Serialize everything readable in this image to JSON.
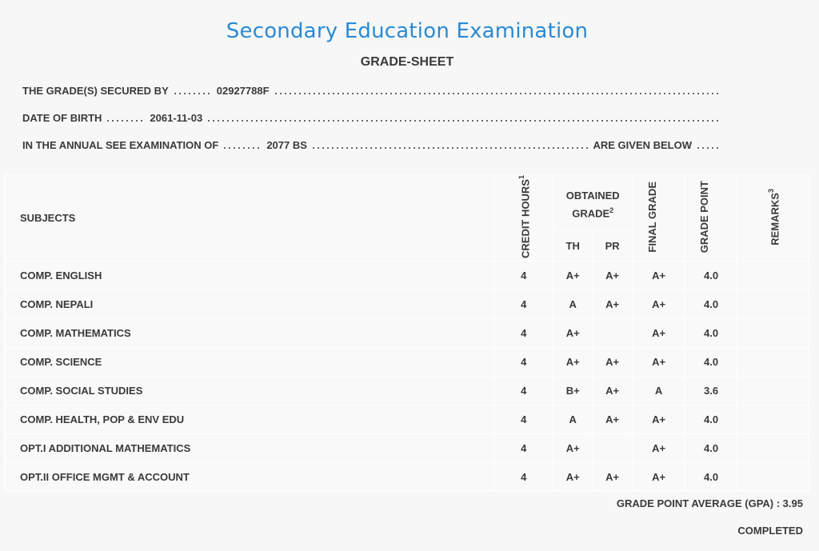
{
  "title": "Secondary Education Examination",
  "subtitle": "GRADE-SHEET",
  "info": [
    {
      "label": "THE GRADE(S) SECURED BY",
      "value": "02927788F"
    },
    {
      "label": "DATE OF BIRTH",
      "value": "2061-11-03"
    },
    {
      "label": "IN THE ANNUAL SEE EXAMINATION OF",
      "value": "2077 BS",
      "suffix": "ARE GIVEN BELOW"
    }
  ],
  "table": {
    "headers": {
      "subjects": "SUBJECTS",
      "credit": {
        "text": "CREDIT HOURS",
        "note": "1"
      },
      "obtained": {
        "text": "OBTAINED GRADE",
        "note": "2"
      },
      "th": "TH",
      "pr": "PR",
      "final": "FINAL GRADE",
      "point": "GRADE POINT",
      "remarks": {
        "text": "REMARKS",
        "note": "3"
      }
    },
    "rows": [
      [
        "COMP. ENGLISH",
        "4",
        "A+",
        "A+",
        "A+",
        "4.0"
      ],
      [
        "COMP. NEPALI",
        "4",
        "A",
        "A+",
        "A+",
        "4.0"
      ],
      [
        "COMP. MATHEMATICS",
        "4",
        "A+",
        null,
        "A+",
        "4.0"
      ],
      [
        "COMP. SCIENCE",
        "4",
        "A+",
        "A+",
        "A+",
        "4.0"
      ],
      [
        "COMP. SOCIAL STUDIES",
        "4",
        "B+",
        "A+",
        "A",
        "3.6"
      ],
      [
        "COMP. HEALTH, POP & ENV EDU",
        "4",
        "A",
        "A+",
        "A+",
        "4.0"
      ],
      [
        "OPT.I ADDITIONAL MATHEMATICS",
        "4",
        "A+",
        null,
        "A+",
        "4.0"
      ],
      [
        "OPT.II OFFICE MGMT & ACCOUNT",
        "4",
        "A+",
        "A+",
        "A+",
        "4.0"
      ]
    ]
  },
  "footer": {
    "gpa": "GRADE POINT AVERAGE (GPA) : 3.95",
    "status": "COMPLETED"
  }
}
